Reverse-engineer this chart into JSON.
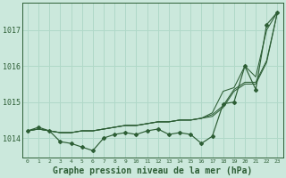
{
  "bg_color": "#cbe8dc",
  "grid_color": "#b0d8c8",
  "line_color": "#2d5e35",
  "xlabel": "Graphe pression niveau de la mer (hPa)",
  "xlabel_fontsize": 7.0,
  "ylabel_ticks": [
    1014,
    1015,
    1016,
    1017
  ],
  "xlim": [
    -0.5,
    23.5
  ],
  "ylim": [
    1013.45,
    1017.75
  ],
  "x_ticks": [
    0,
    1,
    2,
    3,
    4,
    5,
    6,
    7,
    8,
    9,
    10,
    11,
    12,
    13,
    14,
    15,
    16,
    17,
    18,
    19,
    20,
    21,
    22,
    23
  ],
  "series": [
    [
      1014.2,
      1014.3,
      1014.2,
      1013.9,
      1013.85,
      1013.75,
      1013.65,
      1014.0,
      1014.1,
      1014.15,
      1014.1,
      1014.2,
      1014.25,
      1014.1,
      1014.15,
      1014.1,
      1013.85,
      1014.05,
      1014.95,
      1015.0,
      1016.0,
      1015.35,
      1017.15,
      1017.5
    ],
    [
      1014.2,
      1014.25,
      1014.2,
      1014.15,
      1014.15,
      1014.2,
      1014.2,
      1014.25,
      1014.3,
      1014.35,
      1014.35,
      1014.4,
      1014.45,
      1014.45,
      1014.5,
      1014.5,
      1014.55,
      1014.6,
      1014.85,
      1015.3,
      1015.5,
      1015.5,
      1016.1,
      1017.5
    ],
    [
      1014.2,
      1014.25,
      1014.2,
      1014.15,
      1014.15,
      1014.2,
      1014.2,
      1014.25,
      1014.3,
      1014.35,
      1014.35,
      1014.4,
      1014.45,
      1014.45,
      1014.5,
      1014.5,
      1014.55,
      1014.65,
      1014.9,
      1015.35,
      1015.55,
      1015.55,
      1016.15,
      1017.5
    ],
    [
      1014.2,
      1014.25,
      1014.2,
      1014.15,
      1014.15,
      1014.2,
      1014.2,
      1014.25,
      1014.3,
      1014.35,
      1014.35,
      1014.4,
      1014.45,
      1014.45,
      1014.5,
      1014.5,
      1014.55,
      1014.7,
      1015.3,
      1015.4,
      1016.0,
      1015.7,
      1017.0,
      1017.5
    ]
  ],
  "marker_series_idx": 0
}
